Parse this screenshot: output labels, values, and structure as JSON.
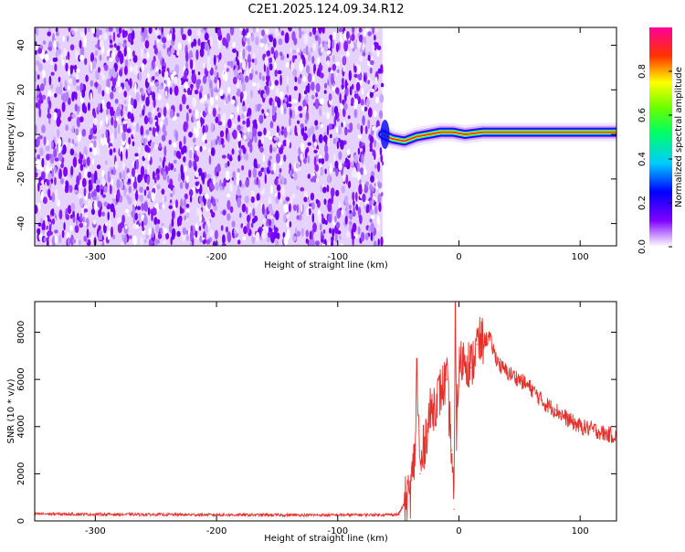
{
  "title": "C2E1.2025.124.09.34.R12",
  "chart_data": [
    {
      "type": "heatmap",
      "xlabel": "Height of straight line (km)",
      "ylabel": "Frequency (Hz)",
      "xlim": [
        -350,
        130
      ],
      "ylim": [
        -50,
        48
      ],
      "xticks": [
        -300,
        -200,
        -100,
        0,
        100
      ],
      "yticks": [
        -40,
        -20,
        0,
        20,
        40
      ],
      "colorbar": {
        "label": "Normalized spectral amplitude",
        "range": [
          0,
          1
        ],
        "ticks": [
          "0.0",
          "0.2",
          "0.4",
          "0.6",
          "0.8"
        ]
      },
      "noise_region_x": [
        -350,
        -63
      ],
      "ridge": [
        {
          "x": -63,
          "f": 0
        },
        {
          "x": -55,
          "f": -2
        },
        {
          "x": -45,
          "f": -3
        },
        {
          "x": -35,
          "f": -1
        },
        {
          "x": -25,
          "f": 0
        },
        {
          "x": -15,
          "f": 1
        },
        {
          "x": -5,
          "f": 1
        },
        {
          "x": 5,
          "f": 0
        },
        {
          "x": 20,
          "f": 1
        },
        {
          "x": 40,
          "f": 1
        },
        {
          "x": 60,
          "f": 1
        },
        {
          "x": 80,
          "f": 1
        },
        {
          "x": 100,
          "f": 1
        },
        {
          "x": 115,
          "f": 1
        },
        {
          "x": 130,
          "f": 1
        }
      ]
    },
    {
      "type": "line",
      "xlabel": "Height of straight line (km)",
      "ylabel": "SNR (10 * v/v)",
      "xlim": [
        -350,
        130
      ],
      "ylim": [
        0,
        9300
      ],
      "xticks": [
        -300,
        -200,
        -100,
        0,
        100
      ],
      "yticks": [
        0,
        2000,
        4000,
        6000,
        8000
      ],
      "series": [
        {
          "color": "#e8302a",
          "x": [
            -350,
            -300,
            -250,
            -200,
            -150,
            -100,
            -50,
            -40,
            -36,
            -35,
            -32,
            -28,
            -24,
            -20,
            -15,
            -10,
            -6,
            -4,
            -3,
            -2,
            0,
            5,
            10,
            15,
            20,
            25,
            30,
            35,
            40,
            50,
            60,
            70,
            80,
            90,
            100,
            110,
            120,
            130
          ],
          "y": [
            300,
            280,
            270,
            260,
            250,
            250,
            270,
            1200,
            3000,
            6800,
            2000,
            3500,
            4500,
            5000,
            5500,
            6000,
            3000,
            500,
            9300,
            4000,
            6500,
            7000,
            6500,
            7500,
            7600,
            7800,
            7000,
            6500,
            6300,
            6000,
            5600,
            5000,
            4700,
            4300,
            4000,
            3900,
            3700,
            3600
          ]
        }
      ]
    }
  ]
}
